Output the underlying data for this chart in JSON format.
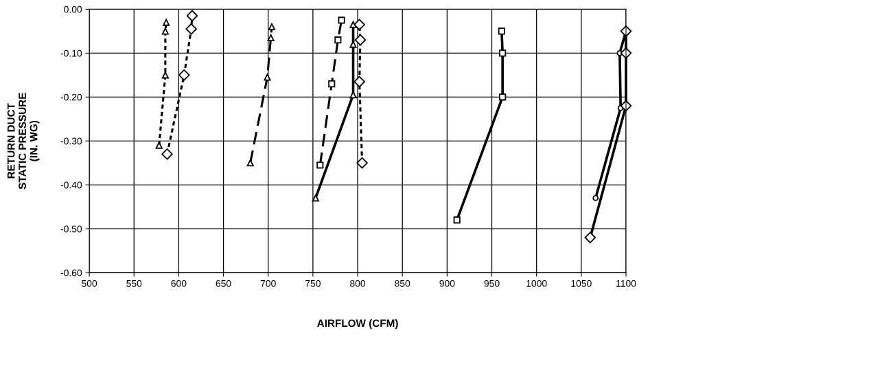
{
  "chart_data": {
    "type": "line",
    "xlabel": "AIRFLOW (CFM)",
    "ylabel": "RETURN DUCT\nSTATIC PRESSURE\n(IN. WG)",
    "xlim": [
      500,
      1100
    ],
    "ylim": [
      -0.6,
      0
    ],
    "xticks": [
      500,
      550,
      600,
      650,
      700,
      750,
      800,
      850,
      900,
      950,
      1000,
      1050,
      1100
    ],
    "yticks": [
      {
        "value": -0.6,
        "label": "-0.60"
      },
      {
        "value": -0.5,
        "label": "-0.50"
      },
      {
        "value": -0.4,
        "label": "-0.40"
      },
      {
        "value": -0.3,
        "label": "-0.30"
      },
      {
        "value": -0.2,
        "label": "-0.20"
      },
      {
        "value": -0.1,
        "label": "-0.10"
      },
      {
        "value": 0,
        "label": "0.00"
      }
    ],
    "grid": true,
    "series": [
      {
        "color": "#000000",
        "marker": "triangle",
        "line_style": "dotted",
        "x": [
          578,
          585,
          585,
          586
        ],
        "values": [
          -0.31,
          -0.15,
          -0.05,
          -0.03
        ]
      },
      {
        "color": "#000000",
        "marker": "diamond",
        "line_style": "dotted",
        "x": [
          587,
          606,
          614,
          615
        ],
        "values": [
          -0.33,
          -0.15,
          -0.045,
          -0.015
        ]
      },
      {
        "color": "#000000",
        "marker": "triangle",
        "line_style": "dashed",
        "x": [
          680,
          699,
          703,
          704
        ],
        "values": [
          -0.35,
          -0.155,
          -0.065,
          -0.04
        ]
      },
      {
        "color": "#000000",
        "marker": "square",
        "line_style": "dashed",
        "x": [
          758,
          771,
          778,
          782
        ],
        "values": [
          -0.355,
          -0.17,
          -0.07,
          -0.025
        ]
      },
      {
        "color": "#000000",
        "marker": "triangle",
        "line_style": "solid",
        "x": [
          753,
          795,
          795,
          795
        ],
        "values": [
          -0.43,
          -0.195,
          -0.08,
          -0.035
        ]
      },
      {
        "color": "#000000",
        "marker": "diamond",
        "line_style": "dotted",
        "x": [
          805,
          802,
          803,
          802
        ],
        "values": [
          -0.35,
          -0.165,
          -0.07,
          -0.035
        ]
      },
      {
        "color": "#000000",
        "marker": "square",
        "line_style": "solid",
        "x": [
          911,
          962,
          962,
          961
        ],
        "values": [
          -0.48,
          -0.2,
          -0.1,
          -0.05
        ]
      },
      {
        "color": "#000000",
        "marker": "circle",
        "line_style": "solid",
        "x": [
          1066,
          1094,
          1093,
          1100
        ],
        "values": [
          -0.43,
          -0.225,
          -0.1,
          -0.05
        ]
      },
      {
        "color": "#000000",
        "marker": "diamond",
        "line_style": "solid",
        "x": [
          1060,
          1100,
          1100,
          1100
        ],
        "values": [
          -0.52,
          -0.22,
          -0.1,
          -0.05
        ]
      }
    ]
  }
}
